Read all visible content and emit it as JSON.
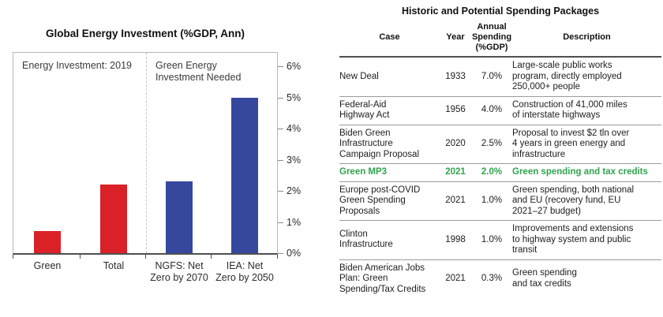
{
  "chart": {
    "title": "Global Energy Investment (%GDP, Ann)",
    "section_left_label": "Energy Investment: 2019",
    "section_right_label": "Green Energy\nInvestment Needed"
  },
  "chart_data": [
    {
      "type": "bar",
      "title": "Global Energy Investment (%GDP, Ann)",
      "categories": [
        "Green",
        "Total",
        "NGFS: Net\nZero by 2070",
        "IEA: Net\nZero by 2050"
      ],
      "values": [
        0.7,
        2.2,
        2.3,
        5.0
      ],
      "unit": "% of GDP, annual",
      "bar_colors": [
        "#da2128",
        "#da2128",
        "#36479e",
        "#36479e"
      ],
      "xlabel": "",
      "ylabel": "",
      "ylim": [
        0,
        6.4
      ],
      "yticks": [
        "0%",
        "1%",
        "2%",
        "3%",
        "4%",
        "5%",
        "6%"
      ],
      "ytick_side": "right",
      "grid": false,
      "legend": "none",
      "annotations": [
        "Energy Investment: 2019",
        "Green Energy Investment Needed"
      ],
      "section_divider_after_category": "Total"
    },
    {
      "type": "table",
      "title": "Historic and Potential Spending Packages",
      "columns": [
        "Case",
        "Year",
        "Annual Spending (%GDP)",
        "Description"
      ],
      "columns_display": [
        "Case",
        "Year",
        "Annual\nSpending\n(%GDP)",
        "Description"
      ],
      "rows": [
        [
          "New Deal",
          "1933",
          "7.0%",
          "Large-scale public works\nprogram, directly employed\n250,000+ people"
        ],
        [
          "Federal-Aid\nHighway Act",
          "1956",
          "4.0%",
          "Construction of 41,000 miles\nof interstate highways"
        ],
        [
          "Biden Green\nInfrastructure\nCampaign Proposal",
          "2020",
          "2.5%",
          "Proposal to invest $2 tln over\n4 years in green energy and\ninfrastructure"
        ],
        [
          "Green MP3",
          "2021",
          "2.0%",
          "Green spending and tax credits"
        ],
        [
          "Europe post-COVID\nGreen Spending\nProposals",
          "2021",
          "1.0%",
          "Green spending, both national\nand EU (recovery fund, EU\n2021–27 budget)"
        ],
        [
          "Clinton\nInfrastructure",
          "1998",
          "1.0%",
          "Improvements and extensions\nto highway system and public\ntransit"
        ],
        [
          "Biden American Jobs\nPlan: Green\nSpending/Tax Credits",
          "2021",
          "0.3%",
          "Green spending\nand tax credits"
        ]
      ],
      "highlight_row_index": 3,
      "highlight_color": "#2fa44d"
    }
  ]
}
